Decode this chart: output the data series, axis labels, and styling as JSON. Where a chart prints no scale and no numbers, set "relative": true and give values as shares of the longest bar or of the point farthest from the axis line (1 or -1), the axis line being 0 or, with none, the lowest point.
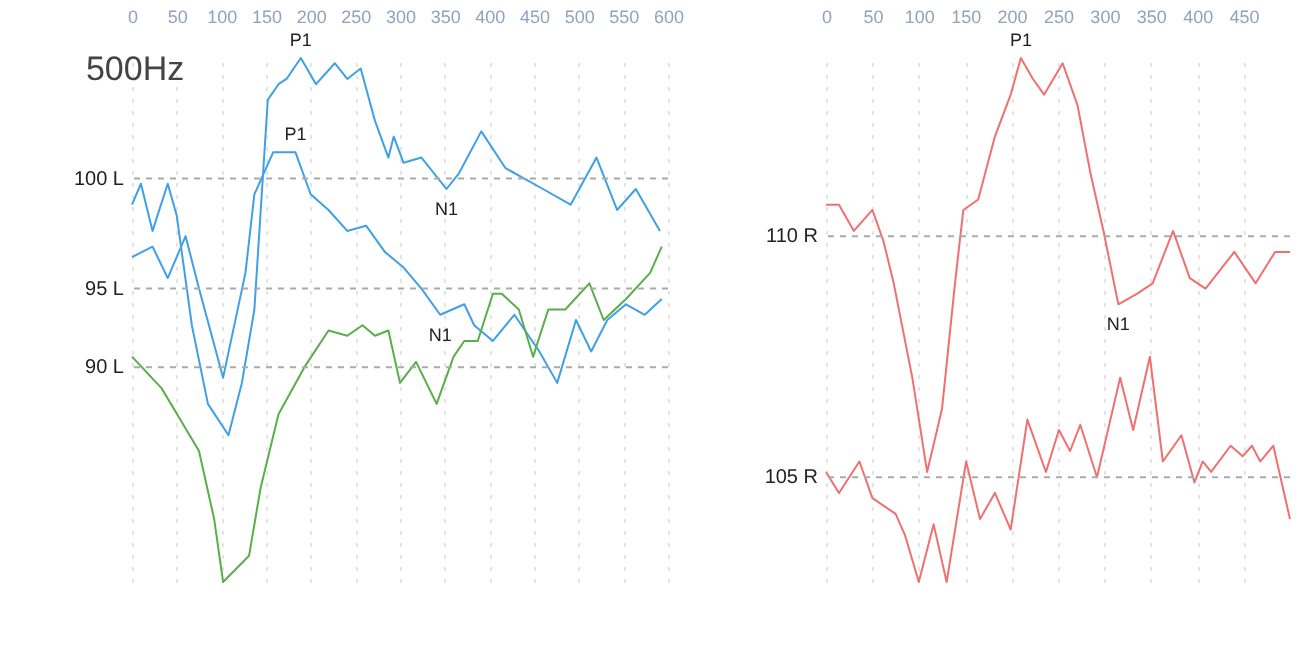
{
  "chart_data": [
    {
      "type": "line",
      "title": "500Hz",
      "relative": true,
      "xlim": [
        0,
        600
      ],
      "xticks": [
        0,
        50,
        100,
        150,
        200,
        250,
        300,
        350,
        400,
        450,
        500,
        550,
        600
      ],
      "grid": "x",
      "series": [
        {
          "color": "#3fa0e8",
          "x": [
            0,
            10,
            23,
            40,
            50,
            67,
            85,
            108,
            123,
            137,
            152,
            164,
            173,
            189,
            206,
            227,
            241,
            256,
            272,
            287,
            293,
            304,
            324,
            352,
            366,
            391,
            418,
            460,
            491,
            520,
            543,
            564,
            591
          ],
          "values": [
            0.72,
            0.76,
            0.67,
            0.76,
            0.7,
            0.49,
            0.34,
            0.28,
            0.38,
            0.52,
            0.92,
            0.95,
            0.96,
            1.0,
            0.95,
            0.99,
            0.96,
            0.98,
            0.88,
            0.81,
            0.85,
            0.8,
            0.81,
            0.75,
            0.78,
            0.86,
            0.79,
            0.75,
            0.72,
            0.81,
            0.71,
            0.75,
            0.67
          ]
        },
        {
          "color": "#3fa0e8",
          "x": [
            0,
            23,
            40,
            60,
            75,
            102,
            127,
            137,
            158,
            183,
            200,
            220,
            241,
            262,
            283,
            304,
            324,
            345,
            372,
            383,
            404,
            428,
            456,
            476,
            497,
            514,
            532,
            553,
            574,
            593
          ],
          "values": [
            0.62,
            0.64,
            0.58,
            0.66,
            0.56,
            0.39,
            0.59,
            0.74,
            0.82,
            0.82,
            0.74,
            0.71,
            0.67,
            0.68,
            0.63,
            0.6,
            0.56,
            0.51,
            0.53,
            0.49,
            0.46,
            0.51,
            0.44,
            0.38,
            0.5,
            0.44,
            0.5,
            0.53,
            0.51,
            0.54
          ]
        },
        {
          "color": "#5aae4a",
          "x": [
            0,
            33,
            54,
            75,
            92,
            102,
            131,
            144,
            164,
            193,
            220,
            241,
            258,
            272,
            287,
            300,
            318,
            341,
            360,
            372,
            387,
            404,
            414,
            433,
            449,
            466,
            485,
            512,
            528,
            553,
            580,
            593
          ],
          "values": [
            0.43,
            0.37,
            0.31,
            0.25,
            0.12,
            0,
            0.05,
            0.18,
            0.32,
            0.41,
            0.48,
            0.47,
            0.49,
            0.47,
            0.48,
            0.38,
            0.42,
            0.34,
            0.43,
            0.46,
            0.46,
            0.55,
            0.55,
            0.52,
            0.43,
            0.52,
            0.52,
            0.57,
            0.5,
            0.54,
            0.59,
            0.64
          ]
        }
      ],
      "ref_lines": [
        {
          "axis": "y",
          "value": 0.77,
          "label": "100 L",
          "color": "#aaaaaa",
          "line_style": "dashed"
        },
        {
          "axis": "y",
          "value": 0.56,
          "label": "95 L",
          "color": "#aaaaaa",
          "line_style": "dashed"
        },
        {
          "axis": "y",
          "value": 0.41,
          "label": "90 L",
          "color": "#aaaaaa",
          "line_style": "dashed"
        }
      ],
      "annotations": [
        {
          "text": "P1",
          "x": 189,
          "y": 1.0
        },
        {
          "text": "P1",
          "x": 183,
          "y": 0.82
        },
        {
          "text": "N1",
          "x": 352,
          "y": 0.75
        },
        {
          "text": "N1",
          "x": 345,
          "y": 0.51
        }
      ]
    },
    {
      "type": "line",
      "relative": true,
      "xlim": [
        0,
        500
      ],
      "xticks": [
        0,
        50,
        100,
        150,
        200,
        250,
        300,
        350,
        400,
        450
      ],
      "grid": "x",
      "series": [
        {
          "color": "#f07070",
          "x": [
            0,
            14,
            30,
            50,
            62,
            73,
            93,
            109,
            125,
            139,
            148,
            164,
            182,
            199,
            210,
            223,
            235,
            255,
            271,
            285,
            299,
            315,
            335,
            352,
            374,
            392,
            409,
            440,
            463,
            484,
            500
          ],
          "values": [
            0.72,
            0.72,
            0.67,
            0.71,
            0.65,
            0.57,
            0.39,
            0.21,
            0.33,
            0.57,
            0.71,
            0.73,
            0.85,
            0.93,
            1.0,
            0.96,
            0.93,
            0.99,
            0.91,
            0.78,
            0.67,
            0.53,
            0.55,
            0.57,
            0.67,
            0.58,
            0.56,
            0.63,
            0.57,
            0.63,
            0.63
          ]
        },
        {
          "color": "#f07070",
          "x": [
            0,
            14,
            36,
            50,
            75,
            85,
            100,
            116,
            130,
            151,
            166,
            182,
            199,
            217,
            237,
            251,
            263,
            274,
            292,
            317,
            331,
            349,
            363,
            383,
            397,
            406,
            415,
            436,
            449,
            459,
            468,
            482,
            500
          ],
          "values": [
            0.21,
            0.17,
            0.23,
            0.16,
            0.13,
            0.09,
            0,
            0.11,
            0,
            0.23,
            0.12,
            0.17,
            0.1,
            0.31,
            0.21,
            0.29,
            0.25,
            0.3,
            0.2,
            0.39,
            0.29,
            0.43,
            0.23,
            0.28,
            0.19,
            0.23,
            0.21,
            0.26,
            0.24,
            0.26,
            0.23,
            0.26,
            0.12
          ]
        }
      ],
      "ref_lines": [
        {
          "axis": "y",
          "value": 0.66,
          "label": "110 R",
          "color": "#aaaaaa",
          "line_style": "dashed"
        },
        {
          "axis": "y",
          "value": 0.2,
          "label": "105 R",
          "color": "#aaaaaa",
          "line_style": "dashed"
        }
      ],
      "annotations": [
        {
          "text": "P1",
          "x": 210,
          "y": 1.0
        },
        {
          "text": "N1",
          "x": 315,
          "y": 0.53
        }
      ]
    }
  ]
}
